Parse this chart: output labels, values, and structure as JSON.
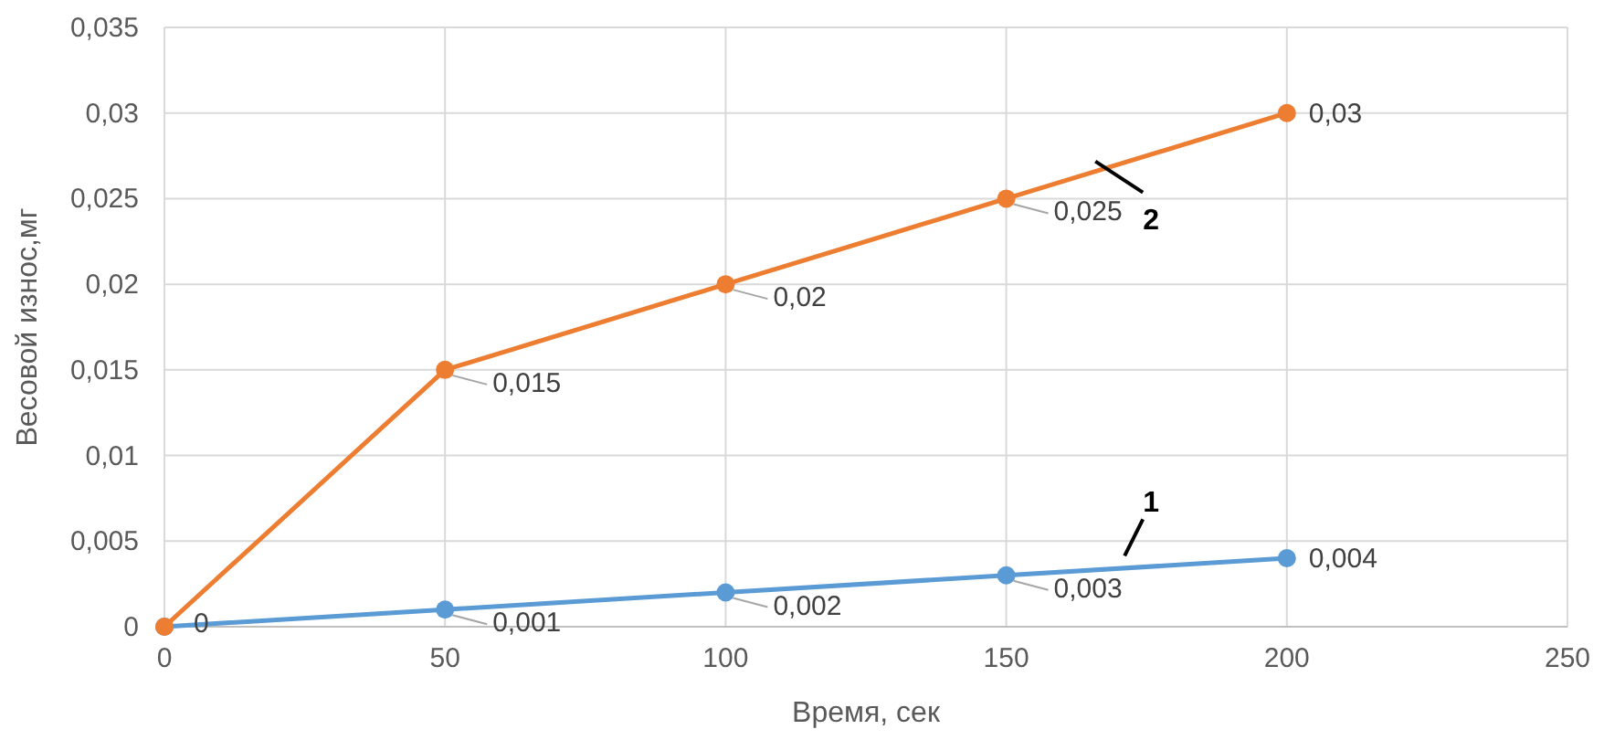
{
  "chart_data": {
    "type": "line",
    "xlabel": "Время, сек",
    "ylabel": "Весовой износ,мг",
    "x": [
      0,
      50,
      100,
      150,
      200
    ],
    "series": [
      {
        "name": "1",
        "color": "#5b9bd5",
        "values": [
          0,
          0.001,
          0.002,
          0.003,
          0.004
        ],
        "value_labels": [
          null,
          "0,001",
          "0,002",
          "0,003",
          "0,004"
        ]
      },
      {
        "name": "2",
        "color": "#ed7d31",
        "values": [
          0,
          0.015,
          0.02,
          0.025,
          0.03
        ],
        "value_labels": [
          "0",
          "0,015",
          "0,02",
          "0,025",
          "0,03"
        ]
      }
    ],
    "xlim": [
      0,
      250
    ],
    "xticks": [
      0,
      50,
      100,
      150,
      200,
      250
    ],
    "ylim": [
      0,
      0.035
    ],
    "yticks": [
      0,
      {
        "value": 0.005,
        "label": "0,005"
      },
      {
        "value": 0.01,
        "label": "0,01"
      },
      {
        "value": 0.015,
        "label": "0,015"
      },
      {
        "value": 0.02,
        "label": "0,02"
      },
      {
        "value": 0.025,
        "label": "0,025"
      },
      {
        "value": 0.03,
        "label": "0,03"
      },
      {
        "value": 0.035,
        "label": "0,035"
      }
    ],
    "grid": true,
    "marker": "circle",
    "line_style": "solid"
  }
}
